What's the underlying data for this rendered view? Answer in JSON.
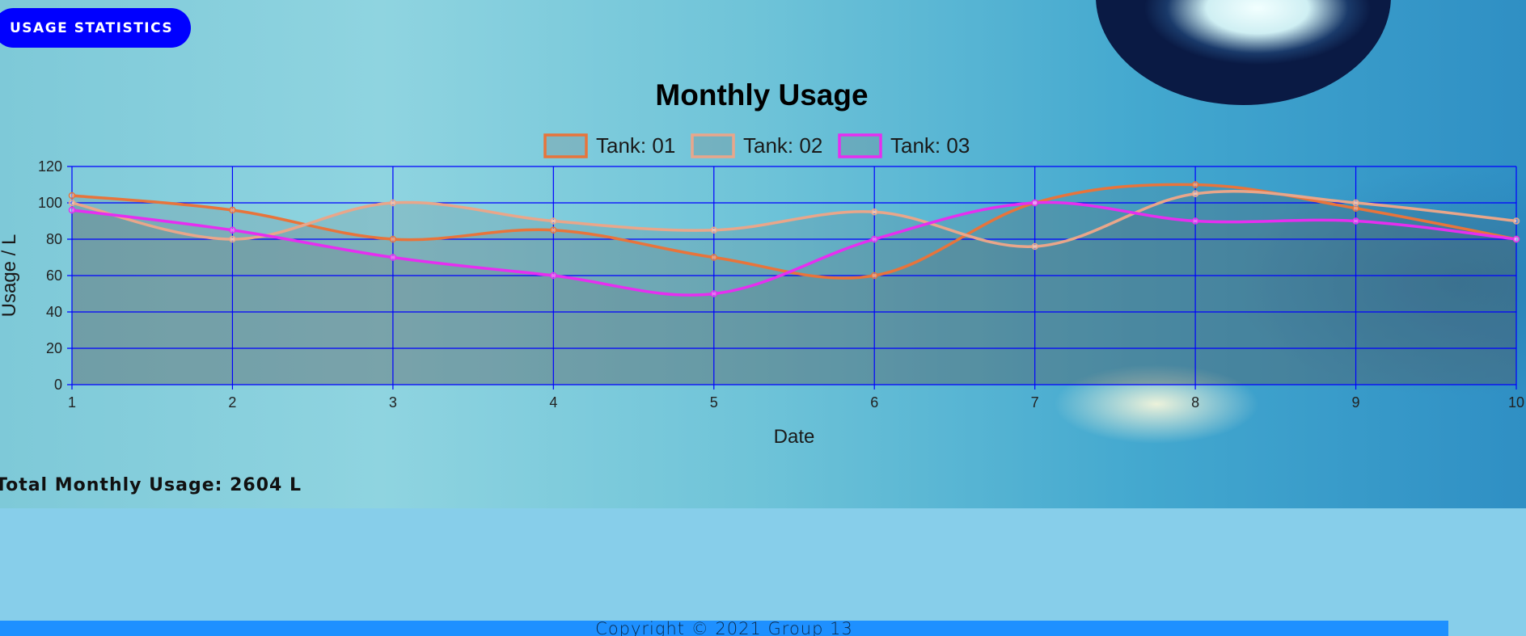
{
  "header": {
    "stats_button_label": "USAGE STATISTICS"
  },
  "chart_data": {
    "type": "line",
    "title": "Monthly Usage",
    "xlabel": "Date",
    "ylabel": "Usage / L",
    "x": [
      1,
      2,
      3,
      4,
      5,
      6,
      7,
      8,
      9,
      10
    ],
    "ylim": [
      0,
      120
    ],
    "yticks": [
      0,
      20,
      40,
      60,
      80,
      100,
      120
    ],
    "grid": true,
    "legend_position": "top-center",
    "series": [
      {
        "name": "Tank: 01",
        "color": "#e8743b",
        "values": [
          104,
          96,
          80,
          85,
          70,
          60,
          100,
          110,
          97,
          80
        ]
      },
      {
        "name": "Tank: 02",
        "color": "#e9a68a",
        "values": [
          100,
          80,
          100,
          90,
          85,
          95,
          76,
          105,
          100,
          90
        ]
      },
      {
        "name": "Tank: 03",
        "color": "#e62ef0",
        "values": [
          96,
          85,
          70,
          60,
          50,
          80,
          100,
          90,
          90,
          80
        ]
      }
    ]
  },
  "summary": {
    "total_usage": "Total Monthly Usage: 2604 L"
  },
  "footer": {
    "copyright": "Copyright © 2021 Group 13"
  },
  "colors": {
    "accent": "#0000ff",
    "footer_bg": "#1e90ff",
    "grid": "#0000ff"
  }
}
